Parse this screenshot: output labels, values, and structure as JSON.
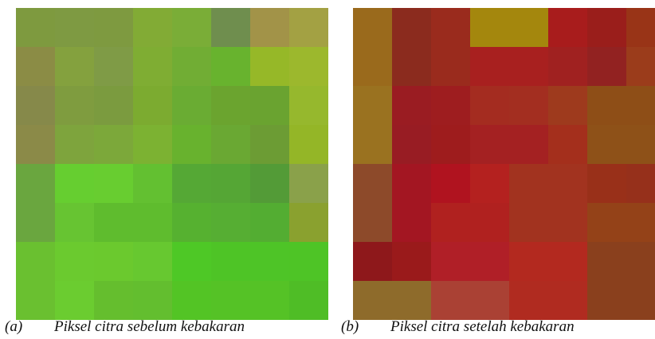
{
  "figure": {
    "panel_a": {
      "letter": "(a)",
      "caption": "Piksel citra sebelum kebakaran",
      "pixels": [
        [
          "#7e9a3f",
          "#7e9a42",
          "#7e9a40",
          "#82ab35",
          "#7aad37",
          "#6f8e4e",
          "#a29348",
          "#a3a143"
        ],
        [
          "#8b8c45",
          "#84a13e",
          "#7f9b46",
          "#7fad33",
          "#71ad34",
          "#68b32e",
          "#96b828",
          "#9cb82d"
        ],
        [
          "#86894a",
          "#7f9c3f",
          "#7b9b3f",
          "#7cab30",
          "#6aac33",
          "#6ba42f",
          "#6aa330",
          "#96b82d"
        ],
        [
          "#8b8a48",
          "#7ea43d",
          "#7ca83a",
          "#7cb232",
          "#68b22e",
          "#6aa833",
          "#6c9c34",
          "#94b627"
        ],
        [
          "#6aa63f",
          "#66ce30",
          "#68cd30",
          "#63c031",
          "#55a835",
          "#55a635",
          "#539b37",
          "#8aa14a"
        ],
        [
          "#6aa63f",
          "#67c432",
          "#5fbc2e",
          "#5fbc2e",
          "#56b130",
          "#56ae33",
          "#53ad32",
          "#8aa12f"
        ],
        [
          "#6ac030",
          "#6bca2f",
          "#6bc92e",
          "#67c830",
          "#4ec826",
          "#4ec426",
          "#4ec427",
          "#4ec426"
        ],
        [
          "#6ac030",
          "#6bcc30",
          "#65be2e",
          "#63be2f",
          "#53c425",
          "#55c226",
          "#55c226",
          "#4fbd26"
        ]
      ]
    },
    "panel_b": {
      "letter": "(b)",
      "caption": "Piksel citra setelah kebakaran",
      "pixels": [
        [
          "#9a6a1c",
          "#8b2b1e",
          "#9a2b1d",
          "#a4870d",
          "#a4870d",
          "#a81c1c",
          "#9a1e1b",
          "#993417"
        ],
        [
          "#9a6a1c",
          "#8b2b1e",
          "#9a2b1d",
          "#a8201f",
          "#a8201f",
          "#a02120",
          "#922221",
          "#9b3c1b"
        ],
        [
          "#9a7220",
          "#9a1c22",
          "#9e1d1f",
          "#a42c20",
          "#a32e20",
          "#9e3a1d",
          "#8e4e17",
          "#8e4e17"
        ],
        [
          "#9a7220",
          "#981c23",
          "#9e1c1d",
          "#a42122",
          "#a42122",
          "#a42f1c",
          "#8e5118",
          "#8e5118"
        ],
        [
          "#8d4a2a",
          "#a31622",
          "#b0131f",
          "#b4211f",
          "#a2331f",
          "#a2331f",
          "#993019",
          "#96301b"
        ],
        [
          "#8d4a2a",
          "#a31622",
          "#b0211f",
          "#b0211f",
          "#a2331f",
          "#a2331f",
          "#944218",
          "#944218"
        ],
        [
          "#8e181b",
          "#9a1a1b",
          "#b01f27",
          "#b01f27",
          "#b3291f",
          "#b3291f",
          "#8a401d",
          "#8a401d"
        ],
        [
          "#8e6b2b",
          "#8e6b2b",
          "#aa4134",
          "#aa4134",
          "#b02b20",
          "#b02b20",
          "#8a401d",
          "#8a401d"
        ]
      ]
    }
  }
}
